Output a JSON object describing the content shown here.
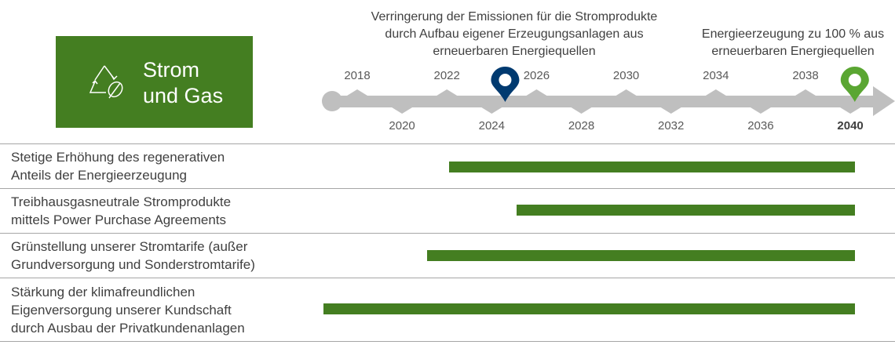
{
  "logo": {
    "line1": "Strom",
    "line2": "und Gas",
    "icon": "recycle-leaf-icon"
  },
  "notes": {
    "emissions": "Verringerung der Emissionen für die Stromprodukte durch Aufbau eigener Erzeugungsanlagen aus erneuerbaren Energiequellen",
    "renewable": "Energieerzeugung zu 100 % aus erneuerbaren Energiequellen"
  },
  "timeline": {
    "years_top": [
      "2018",
      "2022",
      "2026",
      "2030",
      "2034",
      "2038"
    ],
    "years_bottom": [
      "2020",
      "2024",
      "2028",
      "2032",
      "2036",
      "2040"
    ],
    "pin_now_year": 2024.6,
    "pin_goal_year": 2040.2,
    "colors": {
      "axis": "#bfbfbf",
      "pin_now": "#003a70",
      "pin_goal": "#5aa632",
      "bar": "#447e21"
    }
  },
  "rows": [
    {
      "line1": "Stetige Erhöhung des regenerativen",
      "line2": "Anteils der Energieerzeugung",
      "start": 2022.1,
      "end": 2040.2
    },
    {
      "line1": "Treibhausgasneutrale Stromprodukte",
      "line2": "mittels Power Purchase Agreements",
      "start": 2025.1,
      "end": 2040.2
    },
    {
      "line1": "Grünstellung unserer Stromtarife (außer",
      "line2": "Grundversorgung und Sonderstromtarife)",
      "start": 2021.1,
      "end": 2040.2
    },
    {
      "line1": "Stärkung der klimafreundlichen",
      "line2": "Eigenversorgung unserer Kundschaft",
      "line3": "durch Ausbau der Privatkundenanlagen",
      "start": 2016.5,
      "end": 2040.2
    }
  ]
}
